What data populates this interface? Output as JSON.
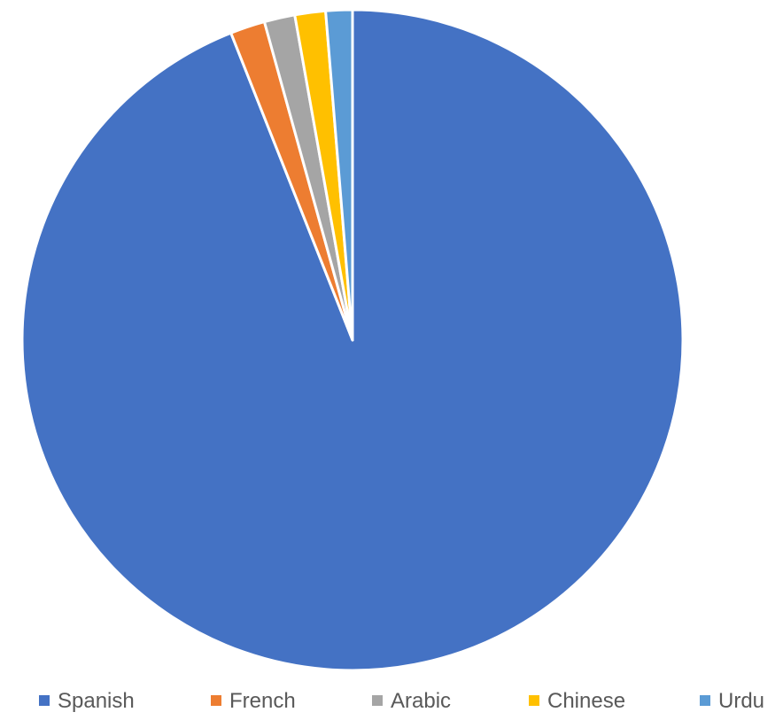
{
  "chart_data": {
    "type": "pie",
    "title": "",
    "categories": [
      "Spanish",
      "French",
      "Arabic",
      "Chinese",
      "Urdu"
    ],
    "values": [
      94.0,
      1.7,
      1.5,
      1.5,
      1.3
    ],
    "colors": [
      "#4472C4",
      "#ED7D31",
      "#A5A5A5",
      "#FFC000",
      "#5B9BD5"
    ],
    "start": "12 o'clock",
    "direction": "clockwise",
    "legend": "bottom"
  }
}
